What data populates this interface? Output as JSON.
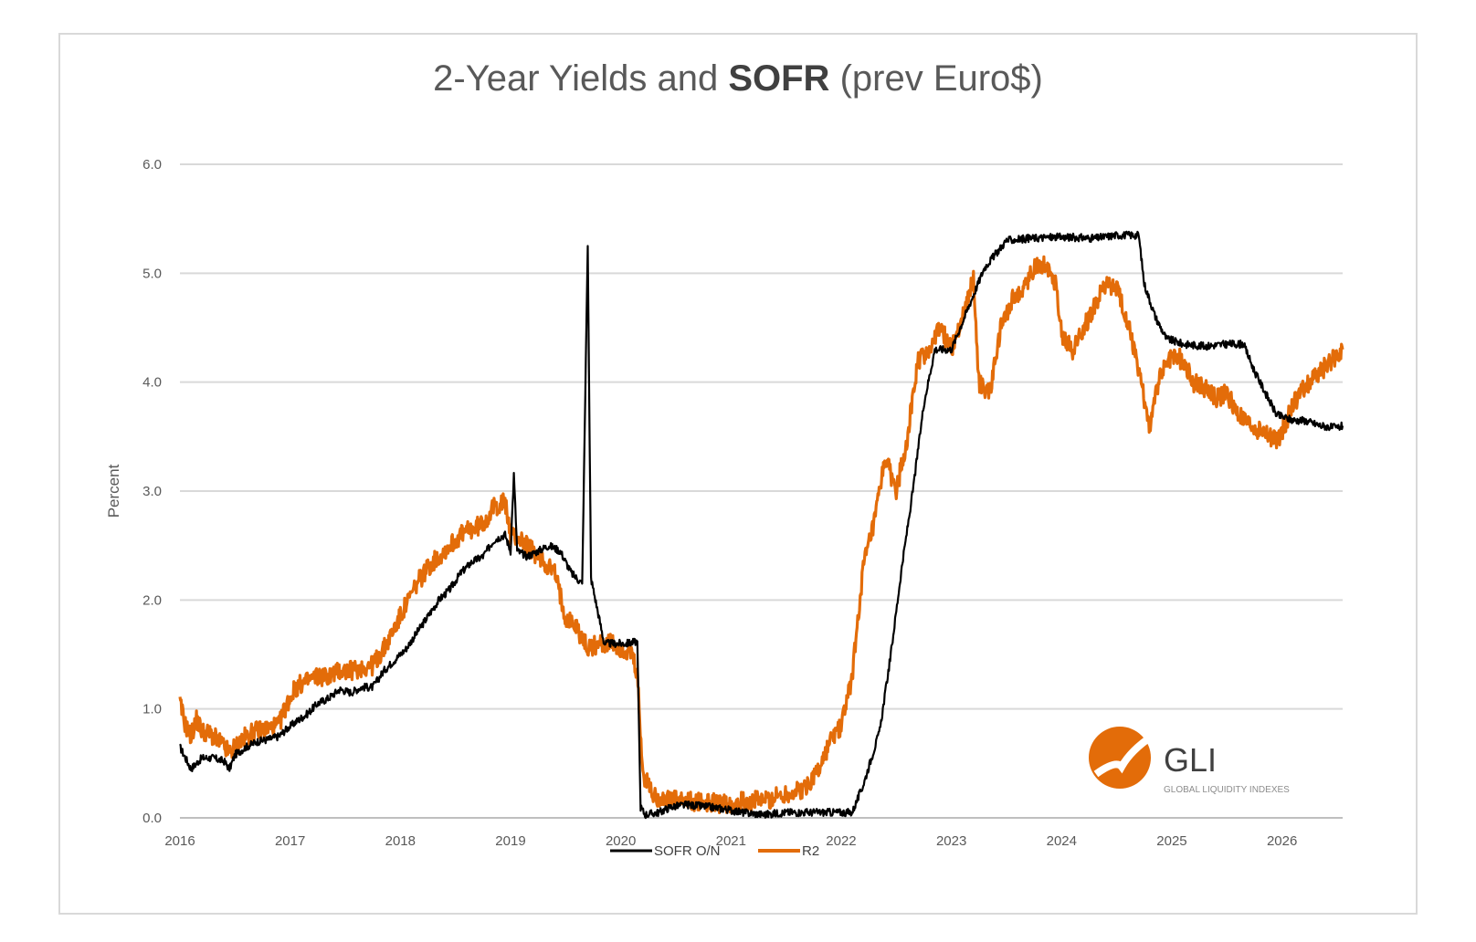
{
  "chart_data": {
    "type": "line",
    "title": {
      "regular_before": "2-Year Yields and ",
      "bold": "SOFR",
      "regular_after": " (prev Euro$)"
    },
    "ylabel": "Percent",
    "xlabel": "",
    "ylim": [
      0,
      6
    ],
    "xlim": [
      2016,
      2026.55
    ],
    "y_ticks": [
      "0.0",
      "1.0",
      "2.0",
      "3.0",
      "4.0",
      "5.0",
      "6.0"
    ],
    "x_ticks": [
      "2016",
      "2017",
      "2018",
      "2019",
      "2020",
      "2021",
      "2022",
      "2023",
      "2024",
      "2025",
      "2026"
    ],
    "grid": "horizontal",
    "legend_position": "bottom",
    "series": [
      {
        "name": "SOFR O/N",
        "color": "#000000",
        "points": [
          [
            2016.0,
            0.65
          ],
          [
            2016.05,
            0.55
          ],
          [
            2016.1,
            0.45
          ],
          [
            2016.15,
            0.5
          ],
          [
            2016.2,
            0.55
          ],
          [
            2016.3,
            0.55
          ],
          [
            2016.4,
            0.52
          ],
          [
            2016.45,
            0.45
          ],
          [
            2016.5,
            0.58
          ],
          [
            2016.6,
            0.65
          ],
          [
            2016.7,
            0.7
          ],
          [
            2016.8,
            0.72
          ],
          [
            2016.9,
            0.75
          ],
          [
            2016.95,
            0.8
          ],
          [
            2017.05,
            0.88
          ],
          [
            2017.15,
            0.95
          ],
          [
            2017.25,
            1.05
          ],
          [
            2017.35,
            1.1
          ],
          [
            2017.45,
            1.18
          ],
          [
            2017.55,
            1.15
          ],
          [
            2017.65,
            1.2
          ],
          [
            2017.75,
            1.2
          ],
          [
            2017.85,
            1.35
          ],
          [
            2017.95,
            1.45
          ],
          [
            2018.05,
            1.55
          ],
          [
            2018.15,
            1.7
          ],
          [
            2018.25,
            1.85
          ],
          [
            2018.35,
            2.0
          ],
          [
            2018.45,
            2.1
          ],
          [
            2018.55,
            2.25
          ],
          [
            2018.65,
            2.35
          ],
          [
            2018.75,
            2.4
          ],
          [
            2018.85,
            2.55
          ],
          [
            2018.95,
            2.6
          ],
          [
            2019.0,
            2.45
          ],
          [
            2019.03,
            3.15
          ],
          [
            2019.06,
            2.45
          ],
          [
            2019.15,
            2.4
          ],
          [
            2019.25,
            2.45
          ],
          [
            2019.35,
            2.5
          ],
          [
            2019.45,
            2.45
          ],
          [
            2019.55,
            2.25
          ],
          [
            2019.65,
            2.15
          ],
          [
            2019.7,
            5.25
          ],
          [
            2019.73,
            2.2
          ],
          [
            2019.78,
            1.95
          ],
          [
            2019.85,
            1.6
          ],
          [
            2019.95,
            1.6
          ],
          [
            2020.05,
            1.6
          ],
          [
            2020.15,
            1.62
          ],
          [
            2020.18,
            0.1
          ],
          [
            2020.22,
            0.03
          ],
          [
            2020.35,
            0.05
          ],
          [
            2020.45,
            0.1
          ],
          [
            2020.6,
            0.12
          ],
          [
            2020.8,
            0.1
          ],
          [
            2020.95,
            0.08
          ],
          [
            2021.1,
            0.05
          ],
          [
            2021.3,
            0.03
          ],
          [
            2021.5,
            0.05
          ],
          [
            2021.7,
            0.05
          ],
          [
            2021.9,
            0.05
          ],
          [
            2022.1,
            0.05
          ],
          [
            2022.2,
            0.3
          ],
          [
            2022.35,
            0.8
          ],
          [
            2022.45,
            1.5
          ],
          [
            2022.55,
            2.3
          ],
          [
            2022.65,
            3.0
          ],
          [
            2022.75,
            3.8
          ],
          [
            2022.85,
            4.3
          ],
          [
            2023.0,
            4.3
          ],
          [
            2023.1,
            4.55
          ],
          [
            2023.2,
            4.8
          ],
          [
            2023.3,
            5.05
          ],
          [
            2023.5,
            5.3
          ],
          [
            2023.7,
            5.32
          ],
          [
            2023.9,
            5.33
          ],
          [
            2024.1,
            5.33
          ],
          [
            2024.3,
            5.32
          ],
          [
            2024.5,
            5.35
          ],
          [
            2024.7,
            5.35
          ],
          [
            2024.75,
            4.9
          ],
          [
            2024.85,
            4.6
          ],
          [
            2024.95,
            4.4
          ],
          [
            2025.1,
            4.35
          ],
          [
            2025.3,
            4.33
          ],
          [
            2025.5,
            4.35
          ],
          [
            2025.65,
            4.35
          ],
          [
            2025.75,
            4.1
          ],
          [
            2025.85,
            3.9
          ],
          [
            2025.95,
            3.7
          ],
          [
            2026.1,
            3.65
          ],
          [
            2026.2,
            3.65
          ],
          [
            2026.35,
            3.6
          ],
          [
            2026.5,
            3.58
          ],
          [
            2026.55,
            3.6
          ]
        ]
      },
      {
        "name": "R2",
        "color": "#E36C09",
        "points": [
          [
            2016.0,
            1.05
          ],
          [
            2016.05,
            0.85
          ],
          [
            2016.1,
            0.75
          ],
          [
            2016.15,
            0.9
          ],
          [
            2016.2,
            0.8
          ],
          [
            2016.3,
            0.75
          ],
          [
            2016.4,
            0.65
          ],
          [
            2016.45,
            0.6
          ],
          [
            2016.5,
            0.65
          ],
          [
            2016.6,
            0.75
          ],
          [
            2016.7,
            0.8
          ],
          [
            2016.8,
            0.82
          ],
          [
            2016.9,
            0.85
          ],
          [
            2016.95,
            1.0
          ],
          [
            2017.05,
            1.2
          ],
          [
            2017.15,
            1.25
          ],
          [
            2017.25,
            1.3
          ],
          [
            2017.35,
            1.3
          ],
          [
            2017.45,
            1.35
          ],
          [
            2017.55,
            1.35
          ],
          [
            2017.65,
            1.38
          ],
          [
            2017.75,
            1.4
          ],
          [
            2017.85,
            1.55
          ],
          [
            2017.95,
            1.75
          ],
          [
            2018.05,
            1.95
          ],
          [
            2018.15,
            2.15
          ],
          [
            2018.25,
            2.3
          ],
          [
            2018.35,
            2.4
          ],
          [
            2018.45,
            2.5
          ],
          [
            2018.55,
            2.6
          ],
          [
            2018.65,
            2.65
          ],
          [
            2018.75,
            2.7
          ],
          [
            2018.85,
            2.85
          ],
          [
            2018.95,
            2.9
          ],
          [
            2019.0,
            2.6
          ],
          [
            2019.1,
            2.55
          ],
          [
            2019.2,
            2.45
          ],
          [
            2019.3,
            2.35
          ],
          [
            2019.4,
            2.25
          ],
          [
            2019.5,
            1.85
          ],
          [
            2019.6,
            1.75
          ],
          [
            2019.7,
            1.55
          ],
          [
            2019.8,
            1.6
          ],
          [
            2019.9,
            1.6
          ],
          [
            2020.0,
            1.55
          ],
          [
            2020.1,
            1.5
          ],
          [
            2020.15,
            1.3
          ],
          [
            2020.2,
            0.4
          ],
          [
            2020.3,
            0.2
          ],
          [
            2020.45,
            0.16
          ],
          [
            2020.6,
            0.15
          ],
          [
            2020.8,
            0.14
          ],
          [
            2020.95,
            0.13
          ],
          [
            2021.1,
            0.15
          ],
          [
            2021.3,
            0.16
          ],
          [
            2021.5,
            0.22
          ],
          [
            2021.65,
            0.25
          ],
          [
            2021.8,
            0.45
          ],
          [
            2021.9,
            0.7
          ],
          [
            2022.0,
            0.85
          ],
          [
            2022.1,
            1.3
          ],
          [
            2022.2,
            2.3
          ],
          [
            2022.3,
            2.7
          ],
          [
            2022.4,
            3.3
          ],
          [
            2022.5,
            3.0
          ],
          [
            2022.6,
            3.5
          ],
          [
            2022.7,
            4.2
          ],
          [
            2022.8,
            4.3
          ],
          [
            2022.9,
            4.5
          ],
          [
            2023.0,
            4.3
          ],
          [
            2023.1,
            4.6
          ],
          [
            2023.2,
            4.95
          ],
          [
            2023.25,
            4.0
          ],
          [
            2023.35,
            3.9
          ],
          [
            2023.45,
            4.5
          ],
          [
            2023.55,
            4.75
          ],
          [
            2023.65,
            4.85
          ],
          [
            2023.75,
            5.05
          ],
          [
            2023.85,
            5.1
          ],
          [
            2023.95,
            4.9
          ],
          [
            2024.0,
            4.45
          ],
          [
            2024.1,
            4.3
          ],
          [
            2024.2,
            4.5
          ],
          [
            2024.3,
            4.7
          ],
          [
            2024.4,
            4.9
          ],
          [
            2024.5,
            4.85
          ],
          [
            2024.6,
            4.55
          ],
          [
            2024.7,
            4.1
          ],
          [
            2024.8,
            3.6
          ],
          [
            2024.9,
            4.1
          ],
          [
            2025.0,
            4.25
          ],
          [
            2025.1,
            4.2
          ],
          [
            2025.2,
            4.0
          ],
          [
            2025.3,
            3.95
          ],
          [
            2025.4,
            3.85
          ],
          [
            2025.5,
            3.9
          ],
          [
            2025.6,
            3.7
          ],
          [
            2025.7,
            3.6
          ],
          [
            2025.8,
            3.55
          ],
          [
            2025.9,
            3.5
          ],
          [
            2025.95,
            3.45
          ],
          [
            2026.0,
            3.55
          ],
          [
            2026.1,
            3.8
          ],
          [
            2026.2,
            3.95
          ],
          [
            2026.3,
            4.05
          ],
          [
            2026.4,
            4.15
          ],
          [
            2026.5,
            4.25
          ],
          [
            2026.55,
            4.3
          ]
        ]
      }
    ]
  },
  "logo": {
    "name": "GLI",
    "tagline": "GLOBAL LIQUIDITY INDEXES",
    "mark": "gli-logo-mark"
  }
}
